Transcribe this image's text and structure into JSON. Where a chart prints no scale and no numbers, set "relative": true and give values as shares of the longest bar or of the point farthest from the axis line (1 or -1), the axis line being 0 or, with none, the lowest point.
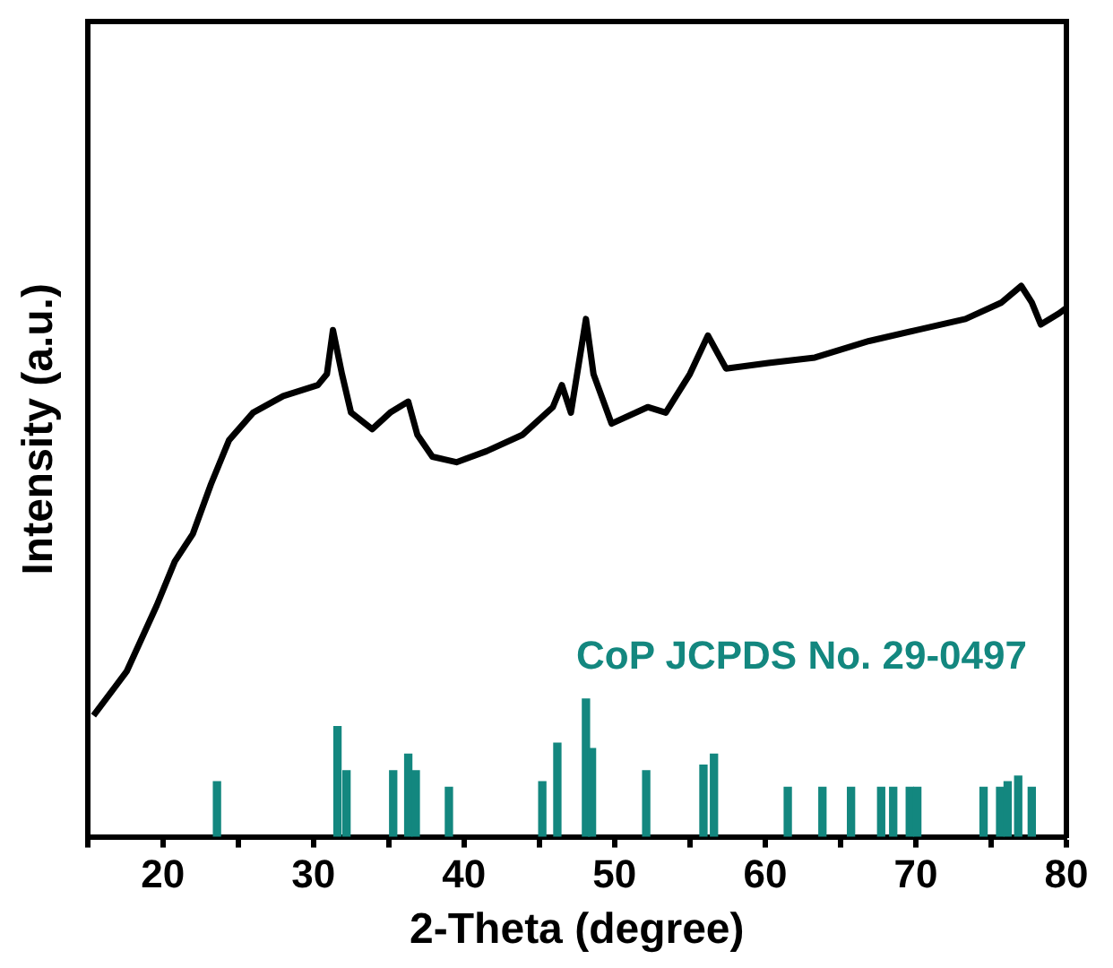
{
  "chart_data": {
    "type": "line",
    "relative": true,
    "xlabel": "2-Theta (degree)",
    "ylabel": "Intensity (a.u.)",
    "xlim": [
      15,
      80
    ],
    "xticks": [
      {
        "value": 15,
        "label": null
      },
      20,
      {
        "value": 25,
        "label": null
      },
      30,
      {
        "value": 35,
        "label": null
      },
      40,
      {
        "value": 45,
        "label": null
      },
      50,
      {
        "value": 55,
        "label": null
      },
      60,
      {
        "value": 65,
        "label": null
      },
      70,
      {
        "value": 75,
        "label": null
      },
      80
    ],
    "series": [
      {
        "color": "#000000",
        "x": [
          15.4,
          17.6,
          19.6,
          20.8,
          22.0,
          23.2,
          24.4,
          26.0,
          28.0,
          30.3,
          30.9,
          31.3,
          31.9,
          32.5,
          33.9,
          35.1,
          36.3,
          36.9,
          37.9,
          39.5,
          41.5,
          43.9,
          45.9,
          46.5,
          47.1,
          48.1,
          48.6,
          49.8,
          52.2,
          53.4,
          55.0,
          56.2,
          57.4,
          60.2,
          63.3,
          66.9,
          70.1,
          73.3,
          75.7,
          77.0,
          77.7,
          78.3,
          79.5,
          80.0
        ],
        "values": [
          0.22,
          0.3,
          0.42,
          0.5,
          0.55,
          0.64,
          0.72,
          0.77,
          0.8,
          0.82,
          0.84,
          0.92,
          0.84,
          0.77,
          0.74,
          0.77,
          0.79,
          0.73,
          0.69,
          0.68,
          0.7,
          0.73,
          0.78,
          0.82,
          0.77,
          0.94,
          0.84,
          0.75,
          0.78,
          0.77,
          0.84,
          0.91,
          0.85,
          0.86,
          0.87,
          0.9,
          0.92,
          0.94,
          0.97,
          1,
          0.97,
          0.93,
          0.95,
          0.96
        ]
      },
      {
        "type": "bar",
        "name": "CoP JCPDS No. 29-0497",
        "color": "#13877f",
        "x": [
          23.6,
          31.6,
          32.2,
          35.3,
          36.3,
          36.8,
          39.0,
          45.2,
          46.2,
          48.1,
          48.5,
          52.1,
          55.9,
          56.6,
          61.5,
          63.8,
          65.7,
          67.7,
          68.5,
          69.6,
          70.1,
          74.5,
          75.6,
          76.1,
          76.8,
          77.7
        ],
        "values": [
          0.1,
          0.2,
          0.12,
          0.12,
          0.15,
          0.12,
          0.09,
          0.1,
          0.17,
          0.25,
          0.16,
          0.12,
          0.13,
          0.15,
          0.09,
          0.09,
          0.09,
          0.09,
          0.09,
          0.09,
          0.09,
          0.09,
          0.09,
          0.1,
          0.11,
          0.09
        ]
      }
    ]
  }
}
